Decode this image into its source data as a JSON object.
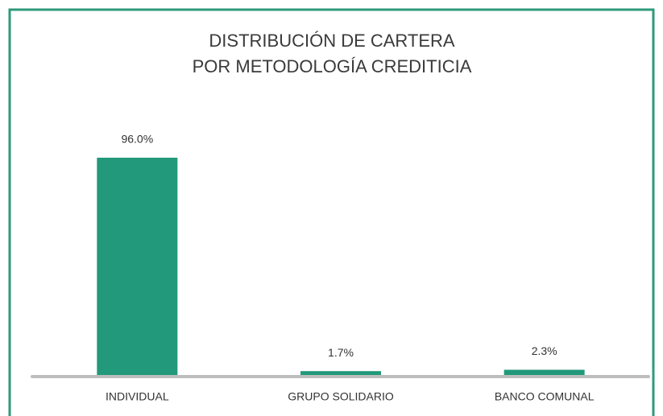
{
  "chart_data": {
    "type": "bar",
    "title": [
      "DISTRIBUCIÓN DE CARTERA",
      "POR METODOLOGÍA CREDITICIA"
    ],
    "categories": [
      "INDIVIDUAL",
      "GRUPO SOLIDARIO",
      "BANCO COMUNAL"
    ],
    "values": [
      96.0,
      1.7,
      2.3
    ],
    "value_labels": [
      "96.0%",
      "1.7%",
      "2.3%"
    ],
    "color": "#21997a",
    "ylim": [
      0,
      100
    ]
  }
}
